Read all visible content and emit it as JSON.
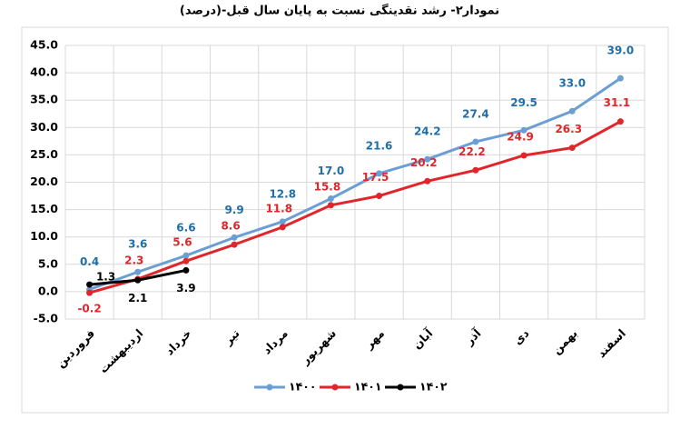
{
  "chart_data": {
    "type": "line",
    "title": "نمودار۲- رشد نقدینگی نسبت به پایان سال قبل-(درصد)",
    "categories": [
      "فروردین",
      "اردیبهشت",
      "خرداد",
      "تیر",
      "مرداد",
      "شهریور",
      "مهر",
      "آبان",
      "آذر",
      "دی",
      "بهمن",
      "اسفند"
    ],
    "series": [
      {
        "name": "۱۴۰۰",
        "color": "#6b9fd3",
        "label_color": "#1f6ea6",
        "values": [
          0.4,
          3.6,
          6.6,
          9.9,
          12.8,
          17.0,
          21.6,
          24.2,
          27.4,
          29.5,
          33.0,
          39.0
        ],
        "value_labels": [
          "0.4",
          "3.6",
          "6.6",
          "9.9",
          "12.8",
          "17.0",
          "21.6",
          "24.2",
          "27.4",
          "29.5",
          "33.0",
          "39.0"
        ]
      },
      {
        "name": "۱۴۰۱",
        "color": "#e0262b",
        "label_color": "#e0262b",
        "values": [
          -0.2,
          2.3,
          5.6,
          8.6,
          11.8,
          15.8,
          17.5,
          20.2,
          22.2,
          24.9,
          26.3,
          31.1
        ],
        "value_labels": [
          "-0.2",
          "2.3",
          "5.6",
          "8.6",
          "11.8",
          "15.8",
          "17.5",
          "20.2",
          "22.2",
          "24.9",
          "26.3",
          "31.1"
        ]
      },
      {
        "name": "۱۴۰۲",
        "color": "#000000",
        "label_color": "#000000",
        "values": [
          1.3,
          2.1,
          3.9,
          null,
          null,
          null,
          null,
          null,
          null,
          null,
          null,
          null
        ],
        "value_labels": [
          "1.3",
          "2.1",
          "3.9",
          null,
          null,
          null,
          null,
          null,
          null,
          null,
          null,
          null
        ]
      }
    ],
    "ylim": [
      -5,
      45
    ],
    "yticks": [
      {
        "value": -5,
        "label": "-5.0"
      },
      {
        "value": 0,
        "label": "0.0"
      },
      {
        "value": 5,
        "label": "5.0"
      },
      {
        "value": 10,
        "label": "10.0"
      },
      {
        "value": 15,
        "label": "15.0"
      },
      {
        "value": 20,
        "label": "20.0"
      },
      {
        "value": 25,
        "label": "25.0"
      },
      {
        "value": 30,
        "label": "30.0"
      },
      {
        "value": 35,
        "label": "35.0"
      },
      {
        "value": 40,
        "label": "40.0"
      },
      {
        "value": 45,
        "label": "45.0"
      }
    ],
    "grid": true,
    "legend": "bottom"
  }
}
